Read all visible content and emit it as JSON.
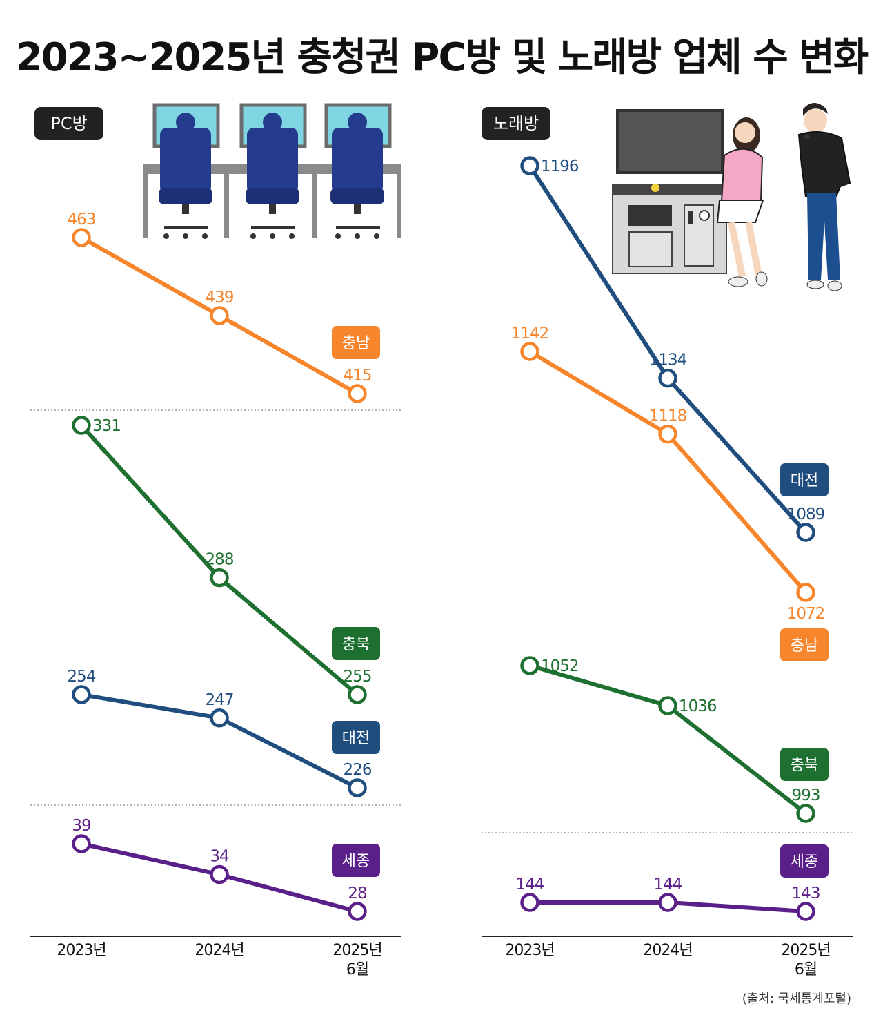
{
  "title": "2023~2025년 충청권 PC방 및 노래방 업체 수 변화",
  "source": "(출처: 국세통계포털)",
  "colors": {
    "충남": "#f6852b",
    "충북": "#1e7030",
    "대전": "#1f4e7e",
    "세종": "#5b1f8a"
  },
  "chart_data": [
    {
      "type": "line",
      "panel": "PC방",
      "categories": [
        "2023년",
        "2024년",
        "2025년 6월"
      ],
      "series": [
        {
          "name": "충남",
          "values": [
            463,
            439,
            415
          ]
        },
        {
          "name": "충북",
          "values": [
            331,
            288,
            255
          ]
        },
        {
          "name": "대전",
          "values": [
            254,
            247,
            226
          ]
        },
        {
          "name": "세종",
          "values": [
            39,
            34,
            28
          ]
        }
      ]
    },
    {
      "type": "line",
      "panel": "노래방",
      "categories": [
        "2023년",
        "2024년",
        "2025년 6월"
      ],
      "series": [
        {
          "name": "대전",
          "values": [
            1196,
            1134,
            1089
          ]
        },
        {
          "name": "충남",
          "values": [
            1142,
            1118,
            1072
          ]
        },
        {
          "name": "충북",
          "values": [
            1052,
            1036,
            993
          ]
        },
        {
          "name": "세종",
          "values": [
            144,
            144,
            143
          ]
        }
      ]
    }
  ]
}
